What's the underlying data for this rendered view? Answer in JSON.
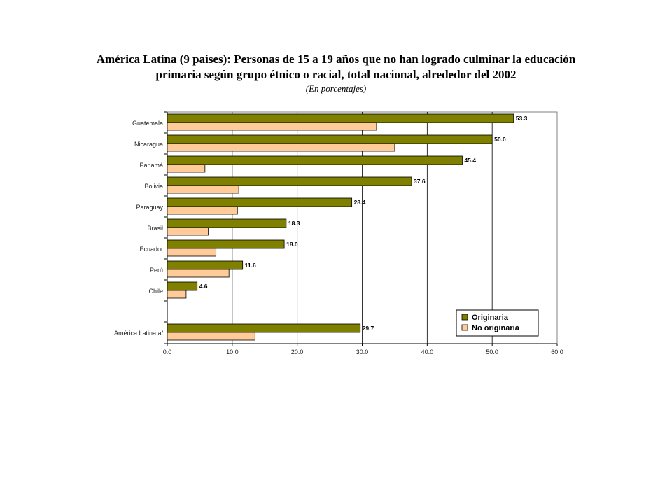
{
  "title_line1": "América Latina (9 países): Personas de 15 a 19 años que no han logrado culminar la educación",
  "title_line2": "primaria según grupo étnico o racial, total nacional, alrededor del 2002",
  "subtitle": "(En porcentajes)",
  "colors": {
    "originaria": "#808000",
    "no_originaria": "#FFCC99",
    "bar_stroke": "#000000",
    "grid": "#000000",
    "plot_border": "#808080"
  },
  "chart_data": {
    "type": "bar",
    "orientation": "horizontal",
    "categories": [
      "Guatemala",
      "Nicaragua",
      "Panamá",
      "Bolivia",
      "Paraguay",
      "Brasil",
      "Ecuador",
      "Perú",
      "Chile",
      "",
      "América Latina a/"
    ],
    "series": [
      {
        "name": "Originaria",
        "values": [
          53.3,
          50.0,
          45.4,
          37.6,
          28.4,
          18.3,
          18.0,
          11.6,
          4.6,
          null,
          29.7
        ],
        "labels": [
          "53.3",
          "50.0",
          "45.4",
          "37.6",
          "28.4",
          "18.3",
          "18.0",
          "11.6",
          "4.6",
          "",
          "29.7"
        ]
      },
      {
        "name": "No originaria",
        "values": [
          32.2,
          35.0,
          5.8,
          11.0,
          10.8,
          6.3,
          7.5,
          9.5,
          2.9,
          null,
          13.5
        ]
      }
    ],
    "xlim": [
      0,
      60
    ],
    "xticks": [
      "0.0",
      "10.0",
      "20.0",
      "30.0",
      "40.0",
      "50.0",
      "60.0"
    ],
    "xtick_values": [
      0,
      10,
      20,
      30,
      40,
      50,
      60
    ],
    "grid": "vertical",
    "legend_position": "bottom-right"
  }
}
